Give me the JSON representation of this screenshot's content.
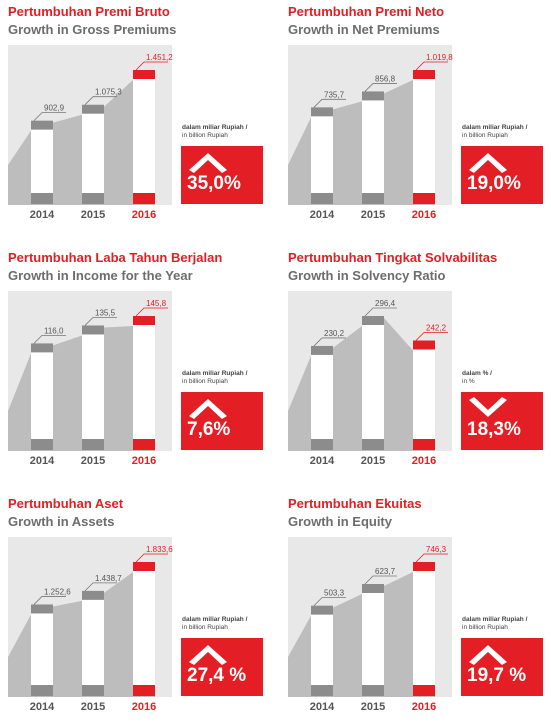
{
  "chart_data": [
    {
      "type": "bar",
      "title": "Pertumbuhan Premi Bruto",
      "subtitle": "Growth in Gross Premiums",
      "categories": [
        "2014",
        "2015",
        "2016"
      ],
      "values": [
        902.9,
        1075.3,
        1451.2
      ],
      "value_labels": [
        "902,9",
        "1.075,3",
        "1.451,2"
      ],
      "unit_note": [
        "dalam miliar Rupiah /",
        "in billion Rupiah"
      ],
      "growth": {
        "value": 35.0,
        "label": "35,0%",
        "direction": "up"
      },
      "color": "#8c8c8c",
      "highlight_color": "#e31e24"
    },
    {
      "type": "bar",
      "title": "Pertumbuhan Premi Neto",
      "subtitle": "Growth in Net Premiums",
      "categories": [
        "2014",
        "2015",
        "2016"
      ],
      "values": [
        735.7,
        856.8,
        1019.8
      ],
      "value_labels": [
        "735,7",
        "856,8",
        "1.019,8"
      ],
      "unit_note": [
        "dalam miliar Rupiah /",
        "in billion Rupiah"
      ],
      "growth": {
        "value": 19.0,
        "label": "19,0%",
        "direction": "up"
      },
      "color": "#8c8c8c",
      "highlight_color": "#e31e24"
    },
    {
      "type": "bar",
      "title": "Pertumbuhan Laba Tahun Berjalan",
      "subtitle": "Growth in Income for the Year",
      "categories": [
        "2014",
        "2015",
        "2016"
      ],
      "values": [
        116.0,
        135.5,
        145.8
      ],
      "value_labels": [
        "116,0",
        "135,5",
        "145,8"
      ],
      "unit_note": [
        "dalam miliar Rupiah /",
        "in billion Rupiah"
      ],
      "growth": {
        "value": 7.6,
        "label": "7,6%",
        "direction": "up"
      },
      "color": "#8c8c8c",
      "highlight_color": "#e31e24"
    },
    {
      "type": "bar",
      "title": "Pertumbuhan Tingkat Solvabilitas",
      "subtitle": "Growth in Solvency Ratio",
      "categories": [
        "2014",
        "2015",
        "2016"
      ],
      "values": [
        230.2,
        296.4,
        242.2
      ],
      "value_labels": [
        "230,2",
        "296,4",
        "242,2"
      ],
      "unit_note": [
        "dalam % /",
        "in %"
      ],
      "growth": {
        "value": 18.3,
        "label": "18,3%",
        "direction": "down"
      },
      "color": "#8c8c8c",
      "highlight_color": "#e31e24"
    },
    {
      "type": "bar",
      "title": "Pertumbuhan Aset",
      "subtitle": "Growth in Assets",
      "categories": [
        "2014",
        "2015",
        "2016"
      ],
      "values": [
        1252.6,
        1438.7,
        1833.6
      ],
      "value_labels": [
        "1.252,6",
        "1.438,7",
        "1.833,6"
      ],
      "unit_note": [
        "dalam miliar Rupiah /",
        "in billion Rupiah"
      ],
      "growth": {
        "value": 27.4,
        "label": "27,4 %",
        "direction": "up"
      },
      "color": "#8c8c8c",
      "highlight_color": "#e31e24"
    },
    {
      "type": "bar",
      "title": "Pertumbuhan Ekuitas",
      "subtitle": "Growth in Equity",
      "categories": [
        "2014",
        "2015",
        "2016"
      ],
      "values": [
        503.3,
        623.7,
        746.3
      ],
      "value_labels": [
        "503,3",
        "623,7",
        "746,3"
      ],
      "unit_note": [
        "dalam miliar Rupiah /",
        "in billion Rupiah"
      ],
      "growth": {
        "value": 19.7,
        "label": "19,7 %",
        "direction": "up"
      },
      "color": "#8c8c8c",
      "highlight_color": "#e31e24"
    }
  ]
}
